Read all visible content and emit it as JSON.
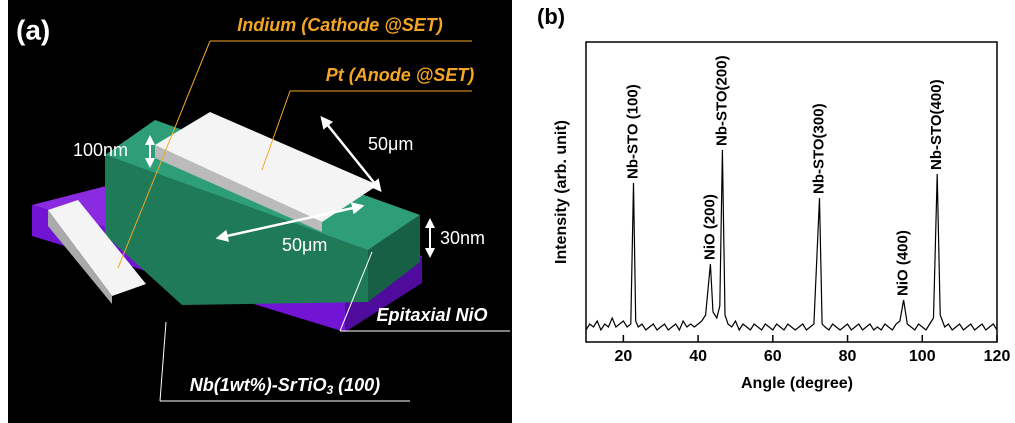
{
  "panel_a": {
    "tag": "(a)",
    "indium": "Indium (Cathode @SET)",
    "pt": "Pt (Anode @SET)",
    "thickness_pt": "100nm",
    "width_1": "50μm",
    "width_2": "50μm",
    "thickness_nio": "30nm",
    "nio": "Epitaxial NiO",
    "substrate": {
      "main": "Nb(1wt%)-SrTiO",
      "sub": "3",
      "tail": " (100)"
    }
  },
  "panel_b": {
    "tag": "(b)"
  },
  "chart_data": {
    "type": "line",
    "x_label": "Angle (degree)",
    "y_label": "Intensity (arb. unit)",
    "color": "#000000",
    "xlim": [
      10,
      120
    ],
    "xticks": [
      20,
      40,
      60,
      80,
      100,
      120
    ],
    "ylim": [
      0,
      100
    ],
    "x": [
      10,
      11,
      12,
      13,
      14,
      15,
      16,
      17,
      18,
      19,
      20,
      21,
      22,
      22.7,
      23.3,
      24,
      25,
      26,
      27,
      28,
      29,
      30,
      31,
      32,
      33,
      34,
      35,
      36,
      37,
      38,
      39,
      40,
      41,
      42,
      43.3,
      44,
      45,
      45.8,
      46.5,
      47.2,
      48,
      49,
      50,
      51,
      52,
      53,
      54,
      55,
      56,
      57,
      58,
      59,
      60,
      61,
      62,
      63,
      64,
      65,
      66,
      67,
      68,
      69,
      70,
      71,
      72.5,
      73.2,
      74,
      75,
      76,
      77,
      78,
      79,
      80,
      81,
      82,
      83,
      84,
      85,
      86,
      87,
      88,
      89,
      90,
      91,
      92,
      93,
      94,
      95,
      96,
      97,
      98,
      99,
      100,
      101,
      102,
      103,
      104,
      104.8,
      106,
      107,
      108,
      109,
      110,
      111,
      112,
      113,
      114,
      115,
      116,
      117,
      118,
      119,
      120
    ],
    "values": [
      4,
      6,
      5,
      7,
      4,
      6,
      5,
      8,
      5,
      6,
      7,
      5,
      6,
      53,
      7,
      5,
      6,
      4,
      5,
      6,
      4,
      5,
      6,
      4,
      5,
      6,
      4,
      7,
      5,
      6,
      5,
      6,
      7,
      9,
      26,
      10,
      8,
      12,
      64,
      9,
      6,
      5,
      7,
      4,
      6,
      5,
      4,
      6,
      5,
      4,
      6,
      5,
      4,
      6,
      5,
      4,
      6,
      5,
      4,
      5,
      6,
      4,
      5,
      6,
      48,
      6,
      5,
      4,
      6,
      5,
      4,
      5,
      6,
      4,
      5,
      6,
      4,
      5,
      6,
      4,
      5,
      4,
      6,
      5,
      4,
      6,
      7,
      14,
      6,
      5,
      4,
      6,
      5,
      4,
      6,
      8,
      56,
      9,
      5,
      6,
      4,
      5,
      6,
      4,
      5,
      6,
      4,
      5,
      6,
      4,
      5,
      6,
      4
    ],
    "annotations": [
      {
        "text": "Nb-STO (100)",
        "x": 22.7
      },
      {
        "text": "NiO (200)",
        "x": 43.3
      },
      {
        "text": "Nb-STO(200)",
        "x": 46.5
      },
      {
        "text": "Nb-STO(300)",
        "x": 72.5
      },
      {
        "text": "NiO (400)",
        "x": 95
      },
      {
        "text": "Nb-STO(400)",
        "x": 104
      }
    ]
  }
}
